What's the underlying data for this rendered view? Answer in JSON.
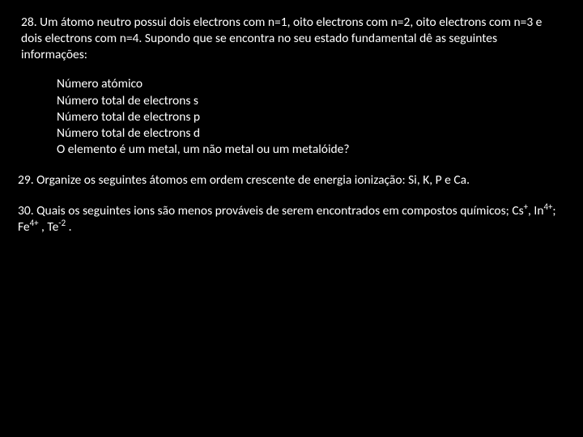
{
  "q28": {
    "text": "28. Um átomo neutro possui dois electrons com n=1, oito electrons com n=2, oito electrons com n=3 e dois electrons com n=4. Supondo que se encontra no seu estado fundamental dê as seguintes informações:",
    "items": [
      "Número atómico",
      "Número total de electrons s",
      "Número total de electrons p",
      "Número total de electrons d",
      "O elemento é um metal, um não metal ou um metalóide?"
    ]
  },
  "q29": {
    "text": "29. Organize os seguintes átomos em ordem crescente de energia ionização: Si, K, P e Ca."
  },
  "q30": {
    "prefix": "30. Quais os seguintes ions são menos prováveis de serem encontrados em compostos químicos; Cs",
    "sup1": "+",
    "mid1": ", In",
    "sup2": "4+",
    "mid2": "; Fe",
    "sup3": "4+",
    "mid3": " , Te",
    "sup4": "-2",
    "suffix": " ."
  }
}
